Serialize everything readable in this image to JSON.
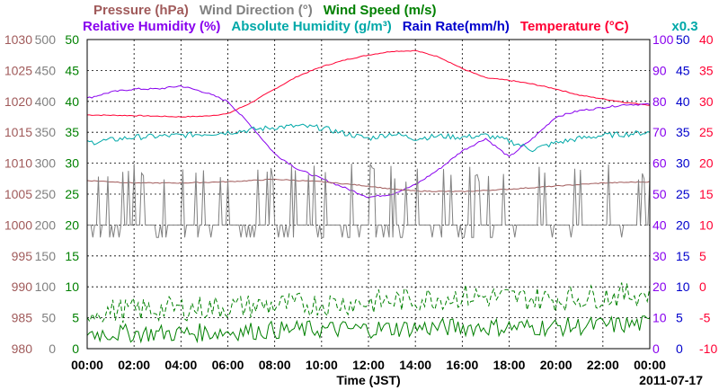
{
  "chart_data": {
    "type": "line",
    "date": "2011-07-17",
    "xlabel": "Time (JST)",
    "x_ticks": [
      "00:00",
      "02:00",
      "04:00",
      "06:00",
      "08:00",
      "10:00",
      "12:00",
      "14:00",
      "16:00",
      "18:00",
      "20:00",
      "22:00",
      "00:00"
    ],
    "legend_row1": [
      {
        "text": "Pressure (hPa)",
        "color": "#a05a5a"
      },
      {
        "text": "Wind Direction (°)",
        "color": "#808080"
      },
      {
        "text": "Wind Speed (m/s)",
        "color": "#008000"
      }
    ],
    "legend_row2": [
      {
        "text": "Relative Humidity (%)",
        "color": "#8800ee"
      },
      {
        "text": "Absolute Humidity (g/m³)",
        "color": "#00a8a8"
      },
      {
        "text": "Rain Rate(mm/h)",
        "color": "#0000cc"
      },
      {
        "text": "Temperature (°C)",
        "color": "#ff0033"
      }
    ],
    "scale_note": "x0.3",
    "axes": {
      "pressure": {
        "ticks": [
          "1030",
          "1025",
          "1020",
          "1015",
          "1010",
          "1005",
          "1000",
          "995",
          "990",
          "985",
          "980"
        ],
        "color": "#a05a5a"
      },
      "wind_direction": {
        "ticks": [
          "500",
          "450",
          "400",
          "350",
          "300",
          "250",
          "200",
          "150",
          "100",
          "50",
          "0"
        ],
        "color": "#808080"
      },
      "wind_speed": {
        "ticks": [
          "50",
          "45",
          "40",
          "35",
          "30",
          "25",
          "20",
          "15",
          "10",
          "5",
          "0"
        ],
        "color": "#008000"
      },
      "relative_humidity": {
        "ticks": [
          "100",
          "90",
          "80",
          "70",
          "60",
          "50",
          "40",
          "30",
          "20",
          "10",
          "0"
        ],
        "color": "#8800ee"
      },
      "rain_rate": {
        "ticks": [
          "50",
          "45",
          "40",
          "35",
          "30",
          "25",
          "20",
          "15",
          "10",
          "5",
          "0"
        ],
        "color": "#0000cc"
      },
      "temperature": {
        "ticks": [
          "40",
          "35",
          "30",
          "25",
          "20",
          "15",
          "10",
          "5",
          "0",
          "-5",
          "-10"
        ],
        "color": "#ff0033"
      }
    },
    "series": [
      {
        "name": "Temperature (°C)",
        "color": "#ff0033",
        "hours": [
          0,
          2,
          4,
          5,
          6,
          7,
          8,
          9,
          10,
          11,
          12,
          13,
          14,
          15,
          16,
          17,
          18,
          19,
          20,
          21,
          22,
          23,
          24
        ],
        "values": [
          27.8,
          27.7,
          27.5,
          27.6,
          28.0,
          29.8,
          32.0,
          34.1,
          35.6,
          36.7,
          37.5,
          38.1,
          38.2,
          37.2,
          35.3,
          33.8,
          33.4,
          32.8,
          32.0,
          31.0,
          30.4,
          29.8,
          29.4
        ]
      },
      {
        "name": "Relative Humidity (%)",
        "color": "#8800ee",
        "hours": [
          0,
          1,
          2,
          3,
          4,
          5,
          6,
          7,
          8,
          9,
          10,
          11,
          12,
          13,
          14,
          15,
          16,
          17,
          18,
          19,
          20,
          21,
          22,
          23,
          24
        ],
        "values": [
          81,
          83,
          84,
          84,
          85,
          83,
          80,
          72,
          63,
          58,
          55,
          52,
          49,
          50,
          53,
          58,
          64,
          68,
          62,
          68,
          75,
          77,
          78,
          79,
          79
        ]
      },
      {
        "name": "Absolute Humidity (g/m³)",
        "color": "#00a8a8",
        "hours": [
          0,
          2,
          4,
          6,
          8,
          9,
          10,
          11,
          12,
          13,
          14,
          15,
          16,
          17,
          18,
          19,
          20,
          21,
          22,
          23,
          24
        ],
        "values": [
          23.3,
          24.2,
          24.5,
          25.0,
          25.8,
          26.0,
          25.7,
          24.8,
          24.0,
          24.8,
          24.0,
          24.4,
          24.2,
          24.5,
          23.6,
          22.2,
          23.3,
          24.0,
          24.5,
          24.7,
          25.0
        ]
      },
      {
        "name": "Pressure (hPa)",
        "color": "#a05a5a",
        "hours": [
          0,
          2,
          4,
          6,
          8,
          10,
          12,
          13,
          14,
          16,
          18,
          20,
          22,
          24
        ],
        "values": [
          1007.2,
          1006.8,
          1006.8,
          1007.0,
          1007.4,
          1007.0,
          1006.3,
          1005.8,
          1005.5,
          1005.4,
          1005.8,
          1006.3,
          1006.8,
          1007.0
        ]
      },
      {
        "name": "Wind Direction (°)",
        "color": "#808080",
        "base": 200,
        "spikes": [
          270,
          180
        ]
      },
      {
        "name": "Wind Speed (m/s) average",
        "color": "#008000",
        "hours": [
          0,
          4,
          8,
          12,
          16,
          20,
          24
        ],
        "values": [
          2.5,
          2.5,
          3,
          3.2,
          3.5,
          3.5,
          4
        ]
      },
      {
        "name": "Wind Speed (m/s) gust",
        "color": "#008000",
        "dashed": true,
        "hours": [
          0,
          4,
          8,
          12,
          16,
          20,
          24
        ],
        "values": [
          6,
          6.5,
          7,
          7.5,
          8.5,
          8,
          9
        ]
      }
    ]
  }
}
